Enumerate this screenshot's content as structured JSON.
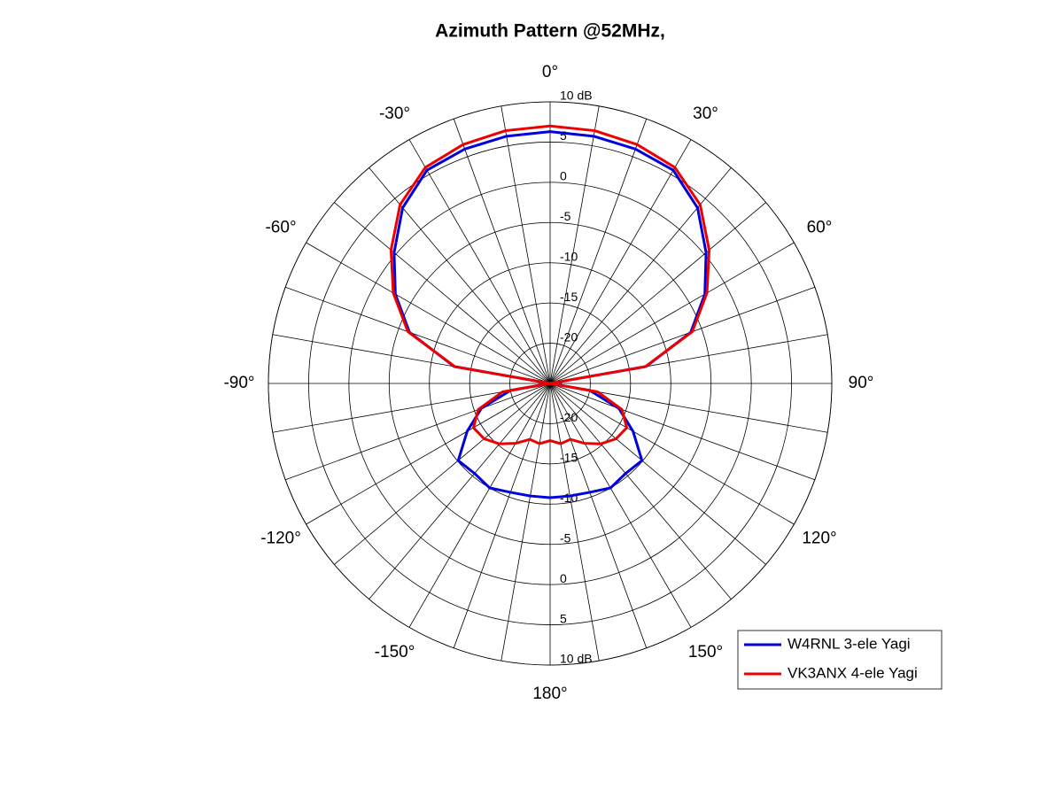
{
  "chart_data": {
    "type": "polar",
    "title": "Azimuth Pattern @52MHz,",
    "x": [
      -180,
      -170,
      -160,
      -150,
      -140,
      -130,
      -120,
      -110,
      -100,
      -90,
      -80,
      -70,
      -60,
      -50,
      -40,
      -30,
      -20,
      -10,
      0,
      10,
      20,
      30,
      40,
      50,
      60,
      70,
      80,
      90,
      100,
      110,
      120,
      130,
      140,
      150,
      160,
      170,
      180
    ],
    "series": [
      {
        "name": "W4RNL 3-ele Yagi",
        "color": "#0000dd",
        "values": [
          -10.8,
          -10.8,
          -10.6,
          -10,
          -10.4,
          -10.1,
          -13.1,
          -15.9,
          -20,
          -25,
          -12.9,
          -6.4,
          -2.8,
          0.3,
          3.5,
          5.6,
          6.0,
          6.2,
          6.3,
          6.2,
          6.0,
          5.6,
          3.5,
          0.3,
          -2.8,
          -6.4,
          -12.9,
          -25,
          -20,
          -15.9,
          -13.1,
          -10.1,
          -10.4,
          -10,
          -10.6,
          -10.8,
          -10.8
        ]
      },
      {
        "name": "VK3ANX 4-ele Yagi",
        "color": "#ee0000",
        "values": [
          -17.9,
          -17.4,
          -17.6,
          -16.4,
          -15.2,
          -14.3,
          -14.0,
          -15.5,
          -19,
          -25,
          -13,
          -6.2,
          -2.5,
          0.8,
          4.0,
          6.0,
          6.6,
          6.9,
          7.0,
          6.9,
          6.6,
          6.0,
          4.0,
          0.8,
          -2.5,
          -6.2,
          -13,
          -25,
          -19,
          -15.5,
          -14.0,
          -14.3,
          -15.2,
          -16.4,
          -17.6,
          -17.4,
          -17.9
        ]
      }
    ],
    "rlim": [
      -25,
      10
    ],
    "rticks": [
      -20,
      -15,
      -10,
      -5,
      0,
      5,
      {
        "value": 10,
        "label": "10 dB"
      }
    ],
    "thetaticks": [
      {
        "value": 0,
        "label": "0°"
      },
      {
        "value": 30,
        "label": "30°"
      },
      {
        "value": 60,
        "label": "60°"
      },
      {
        "value": 90,
        "label": "90°"
      },
      {
        "value": 120,
        "label": "120°"
      },
      {
        "value": 150,
        "label": "150°"
      },
      {
        "value": 180,
        "label": "180°"
      },
      {
        "value": -150,
        "label": "-150°"
      },
      {
        "value": -120,
        "label": "-120°"
      },
      {
        "value": -90,
        "label": "-90°"
      },
      {
        "value": -60,
        "label": "-60°"
      },
      {
        "value": -30,
        "label": "-30°"
      }
    ],
    "grid": true,
    "legend": "lower right"
  }
}
